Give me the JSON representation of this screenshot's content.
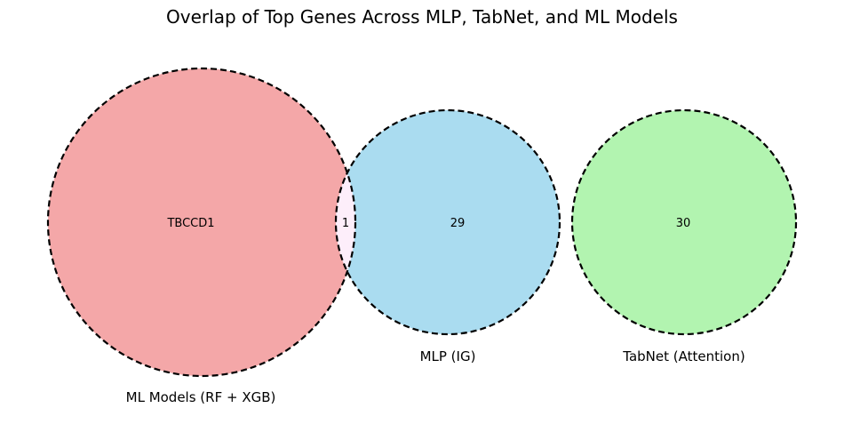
{
  "title": "Overlap of Top Genes Across MLP, TabNet, and ML Models",
  "sets": [
    {
      "name": "ML Models (RF + XGB)",
      "color": "#f4a7a8"
    },
    {
      "name": "MLP (IG)",
      "color": "#aadcf0"
    },
    {
      "name": "TabNet (Attention)",
      "color": "#b2f4b0"
    }
  ],
  "overlap_color": "#fdeefa",
  "regions": {
    "ml_only": "TBCCD1",
    "ml_mlp": "1",
    "mlp_only": "29",
    "tabnet_only": "30"
  }
}
